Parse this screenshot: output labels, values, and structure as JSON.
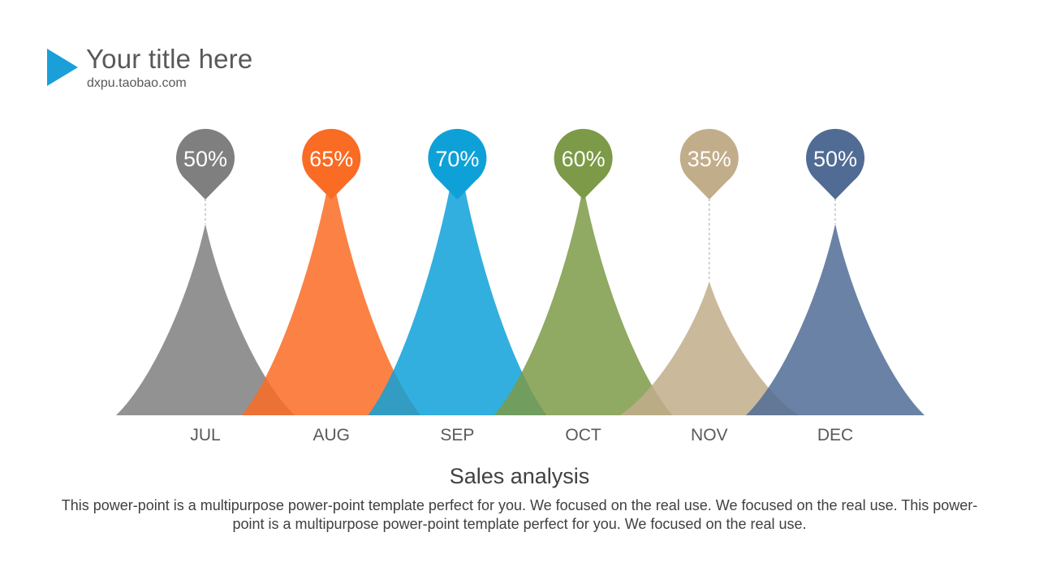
{
  "header": {
    "title": "Your title here",
    "subtitle": "dxpu.taobao.com",
    "accent": "#1a9fd9"
  },
  "chart_data": {
    "type": "area",
    "title": "Sales analysis",
    "xlabel": "",
    "ylabel": "",
    "ylim": [
      0,
      100
    ],
    "grid": false,
    "categories": [
      "JUL",
      "AUG",
      "SEP",
      "OCT",
      "NOV",
      "DEC"
    ],
    "values": [
      50,
      65,
      70,
      60,
      35,
      50
    ],
    "labels": [
      "50%",
      "65%",
      "70%",
      "60%",
      "35%",
      "50%"
    ],
    "colors": [
      "#7f7f7f",
      "#fa6b23",
      "#0ea1d8",
      "#7c9a48",
      "#c2ad8b",
      "#506c95"
    ]
  },
  "footer": {
    "description": "This power-point is a multipurpose power-point template perfect for you. We focused on the real use. We focused on the real use. This power-point is a multipurpose power-point template perfect for you. We focused on the real use."
  }
}
